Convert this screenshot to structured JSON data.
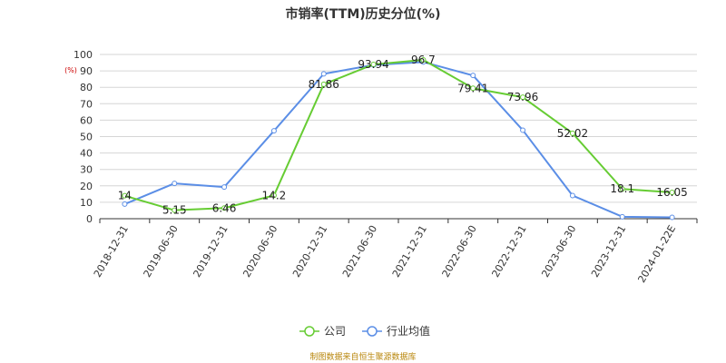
{
  "chart_data": {
    "type": "line",
    "title": "市销率(TTM)历史分位(%)",
    "ylabel": "(%)",
    "xlabel": "",
    "ylim": [
      0,
      100
    ],
    "yticks": [
      0,
      10,
      20,
      30,
      40,
      50,
      60,
      70,
      80,
      90,
      100
    ],
    "categories": [
      "2018-12-31",
      "2019-06-30",
      "2019-12-31",
      "2020-06-30",
      "2020-12-31",
      "2021-06-30",
      "2021-12-31",
      "2022-06-30",
      "2022-12-31",
      "2023-06-30",
      "2023-12-31",
      "2024-01-22E"
    ],
    "grid": true,
    "legend_position": "bottom",
    "series": [
      {
        "name": "公司",
        "color": "#66cc33",
        "values": [
          14,
          5.15,
          6.46,
          14.2,
          81.86,
          93.94,
          96.7,
          79.41,
          73.96,
          52.02,
          18.1,
          16.05
        ],
        "labels": [
          "14",
          "5.15",
          "6.46",
          "14.2",
          "81.86",
          "93.94",
          "96.7",
          "79.41",
          "73.96",
          "52.02",
          "18.1",
          "16.05"
        ]
      },
      {
        "name": "行业均值",
        "color": "#5b8ee6",
        "values": [
          8.9,
          21.5,
          19.3,
          53.5,
          88.2,
          93.6,
          95.4,
          87.2,
          53.9,
          14.1,
          1.2,
          0.8
        ]
      }
    ],
    "source": "制图数据来自恒生聚源数据库"
  }
}
